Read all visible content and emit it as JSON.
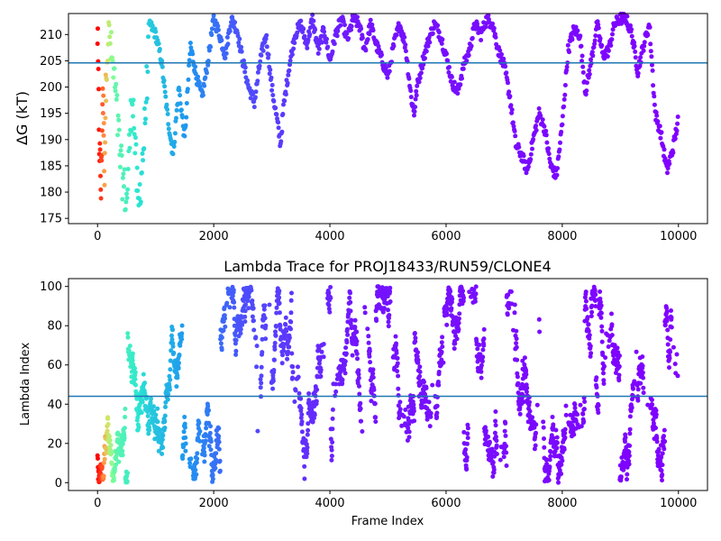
{
  "chart_data": [
    {
      "type": "scatter",
      "title": "",
      "xlabel": "",
      "ylabel": "ΔG (kT)",
      "xlim": [
        -500,
        10500
      ],
      "ylim": [
        174,
        214
      ],
      "x_ticks": [
        0,
        2000,
        4000,
        6000,
        8000,
        10000
      ],
      "y_ticks": [
        175,
        180,
        185,
        190,
        195,
        200,
        205,
        210
      ],
      "x_tick_labels": [
        "0",
        "2000",
        "4000",
        "6000",
        "8000",
        "10000"
      ],
      "y_tick_labels": [
        "175",
        "180",
        "185",
        "190",
        "195",
        "200",
        "205",
        "210"
      ],
      "hline": 204.6,
      "hline_color": "#1f77b4",
      "colormap": "rainbow (red at early frames → violet at late frames)",
      "marker_size": 5,
      "grid": false,
      "series": [
        {
          "x": [
            0,
            30,
            60,
            90,
            120,
            150,
            200,
            300,
            400,
            500,
            600,
            700,
            800,
            900,
            1000,
            1100,
            1200,
            1300,
            1400,
            1500,
            1600,
            1700,
            1800,
            1900,
            2000,
            2100,
            2200,
            2300,
            2400,
            2500,
            2600,
            2700,
            2800,
            2900,
            3000,
            3100,
            3150,
            3200,
            3300,
            3400,
            3500,
            3600,
            3700,
            3800,
            3900,
            4000,
            4100,
            4200,
            4300,
            4400,
            4500,
            4600,
            4700,
            4800,
            4900,
            5000,
            5100,
            5200,
            5300,
            5400,
            5450,
            5500,
            5600,
            5700,
            5800,
            5900,
            6000,
            6100,
            6200,
            6300,
            6400,
            6500,
            6600,
            6700,
            6800,
            6900,
            7000,
            7100,
            7200,
            7300,
            7400,
            7500,
            7600,
            7700,
            7800,
            7900,
            8000,
            8100,
            8200,
            8300,
            8400,
            8500,
            8600,
            8700,
            8800,
            8900,
            9000,
            9100,
            9200,
            9300,
            9400,
            9500,
            9600,
            9700,
            9800,
            9900,
            10000
          ],
          "y": [
            210,
            190,
            180,
            200,
            185,
            205,
            210,
            200,
            185,
            178,
            200,
            176,
            190,
            212,
            210,
            205,
            195,
            187,
            200,
            190,
            208,
            202,
            198,
            205,
            213,
            210,
            206,
            213,
            211,
            205,
            200,
            197,
            205,
            210,
            200,
            193,
            189,
            196,
            204,
            210,
            212,
            208,
            213,
            207,
            211,
            205,
            210,
            213,
            209,
            213,
            212,
            207,
            212,
            208,
            205,
            202,
            208,
            212,
            208,
            198,
            195,
            200,
            205,
            209,
            212,
            210,
            206,
            201,
            199,
            204,
            207,
            212,
            210,
            213,
            212,
            207,
            204,
            198,
            189,
            187,
            184,
            190,
            195,
            192,
            185,
            183,
            193,
            207,
            211,
            210,
            199,
            205,
            212,
            206,
            207,
            212,
            213,
            213,
            210,
            203,
            208,
            212,
            195,
            191,
            184,
            188,
            194
          ]
        }
      ]
    },
    {
      "type": "scatter",
      "title": "Lambda Trace for PROJ18433/RUN59/CLONE4",
      "xlabel": "Frame Index",
      "ylabel": "Lambda Index",
      "xlim": [
        -500,
        10500
      ],
      "ylim": [
        -4,
        104
      ],
      "x_ticks": [
        0,
        2000,
        4000,
        6000,
        8000,
        10000
      ],
      "y_ticks": [
        0,
        20,
        40,
        60,
        80,
        100
      ],
      "x_tick_labels": [
        "0",
        "2000",
        "4000",
        "6000",
        "8000",
        "10000"
      ],
      "y_tick_labels": [
        "0",
        "20",
        "40",
        "60",
        "80",
        "100"
      ],
      "hline": 44,
      "hline_color": "#1f77b4",
      "colormap": "rainbow (red at early frames → violet at late frames)",
      "marker_size": 5,
      "grid": false,
      "series": [
        {
          "x_range": [
            0,
            10000
          ],
          "y_range": [
            0,
            100
          ],
          "description_only": false
        }
      ]
    }
  ]
}
